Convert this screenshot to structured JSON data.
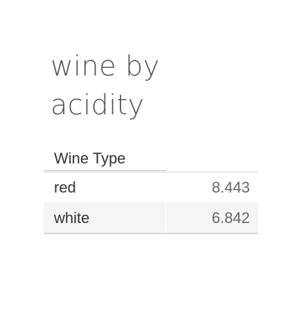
{
  "chart_data": {
    "type": "table",
    "title_lines": [
      "wine by",
      "acidity"
    ],
    "columns": [
      "Wine Type",
      ""
    ],
    "rows": [
      {
        "label": "red",
        "value": "8.443"
      },
      {
        "label": "white",
        "value": "6.842"
      }
    ]
  }
}
